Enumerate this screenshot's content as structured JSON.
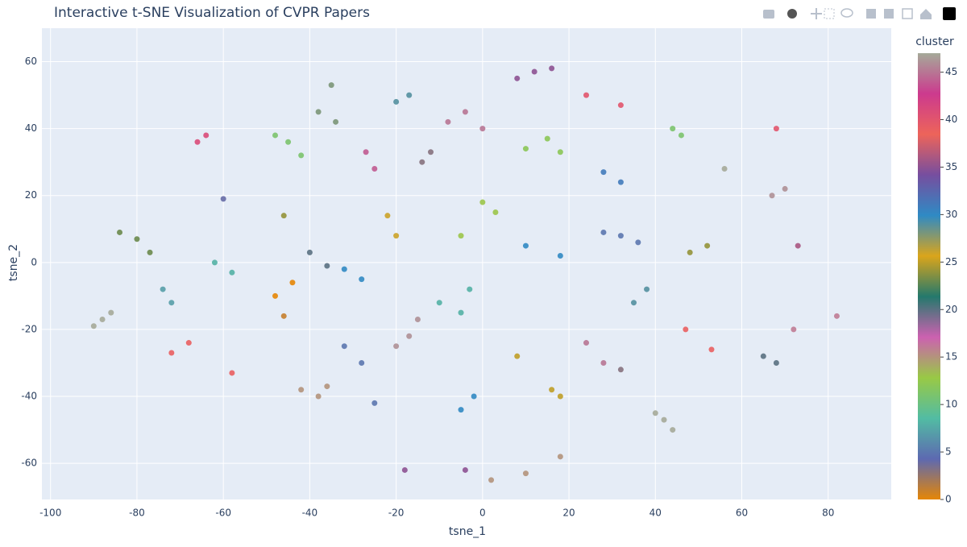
{
  "chart_data": {
    "type": "scatter",
    "title": "Interactive t-SNE Visualization of CVPR Papers",
    "x_label": "tsne_1",
    "y_label": "tsne_2",
    "colorbar_title": "cluster",
    "xlim": [
      -102,
      94.6
    ],
    "ylim": [
      -70.8,
      70
    ],
    "xticks": [
      -100,
      -80,
      -60,
      -40,
      -20,
      0,
      20,
      40,
      60,
      80
    ],
    "yticks": [
      -60,
      -40,
      -20,
      0,
      20,
      40,
      60
    ],
    "clim": [
      0,
      47
    ],
    "cticks": [
      0,
      5,
      10,
      15,
      20,
      25,
      30,
      35,
      40,
      45
    ],
    "colorscale": [
      "#E58606",
      "#5D69B1",
      "#52BCA3",
      "#99C945",
      "#CC61B0",
      "#24796C",
      "#DAA51B",
      "#2F8AC4",
      "#764E9F",
      "#ED645A",
      "#CC3A8E",
      "#A5AA99"
    ],
    "grid": true,
    "series": [
      {
        "x": [
          -48,
          -44,
          -46,
          -88,
          -86,
          -90,
          42,
          40,
          44,
          -84,
          -80,
          -77,
          -74,
          -72,
          -72,
          -68,
          -42,
          -38,
          -36,
          -28,
          -25,
          -32,
          -17,
          -15,
          -20,
          -28,
          -32,
          -2,
          -5,
          -45,
          -42,
          -48,
          -35,
          -38,
          -34,
          -17,
          -20,
          -4,
          -8,
          0,
          -27,
          -25,
          -14,
          -12,
          8,
          12,
          16,
          24,
          32,
          10,
          15,
          18,
          28,
          32,
          44,
          46,
          56,
          68,
          70,
          67,
          32,
          36,
          28,
          48,
          52,
          73,
          0,
          -5,
          3,
          82,
          72,
          68,
          65,
          47,
          53,
          35,
          38,
          18,
          16,
          8,
          24,
          28,
          32,
          18,
          10,
          -18,
          -4,
          2,
          -10,
          -5,
          -3,
          -40,
          -36,
          -20,
          -22,
          -58,
          -62,
          -60,
          -64,
          -66,
          -46,
          -58,
          10,
          18
        ],
        "y": [
          -10,
          -6,
          -16,
          -17,
          -15,
          -19,
          -47,
          -45,
          -50,
          9,
          7,
          3,
          -8,
          -12,
          -27,
          -24,
          -38,
          -40,
          -37,
          -30,
          -42,
          -25,
          -22,
          -17,
          -25,
          -5,
          -2,
          -40,
          -44,
          36,
          32,
          38,
          53,
          45,
          42,
          50,
          48,
          45,
          42,
          40,
          33,
          28,
          30,
          33,
          55,
          57,
          58,
          50,
          47,
          34,
          37,
          33,
          27,
          24,
          40,
          38,
          28,
          40,
          22,
          20,
          8,
          6,
          9,
          3,
          5,
          5,
          18,
          8,
          15,
          -16,
          -20,
          -30,
          -28,
          -20,
          -26,
          -12,
          -8,
          -40,
          -38,
          -28,
          -24,
          -30,
          -32,
          -58,
          -63,
          -62,
          -62,
          -65,
          -12,
          -15,
          -8,
          3,
          -1,
          8,
          14,
          -3,
          0,
          19,
          38,
          36,
          14,
          -33,
          5,
          2
        ],
        "values": [
          0,
          0,
          1,
          47,
          47,
          47,
          47,
          47,
          47,
          23,
          23,
          23,
          7,
          7,
          39,
          39,
          15,
          15,
          15,
          5,
          5,
          5,
          46,
          46,
          46,
          30,
          30,
          30,
          30,
          11,
          11,
          11,
          28,
          28,
          28,
          29,
          29,
          45,
          45,
          45,
          44,
          44,
          3,
          3,
          35,
          35,
          35,
          40,
          40,
          12,
          12,
          12,
          31,
          31,
          11,
          11,
          47,
          40,
          46,
          46,
          5,
          5,
          5,
          24,
          24,
          36,
          13,
          13,
          13,
          16,
          16,
          20,
          20,
          39,
          39,
          29,
          29,
          25,
          25,
          25,
          45,
          45,
          3,
          15,
          15,
          35,
          35,
          15,
          8,
          8,
          8,
          20,
          20,
          26,
          26,
          8,
          8,
          4,
          41,
          41,
          24,
          39,
          30,
          30
        ]
      }
    ]
  }
}
